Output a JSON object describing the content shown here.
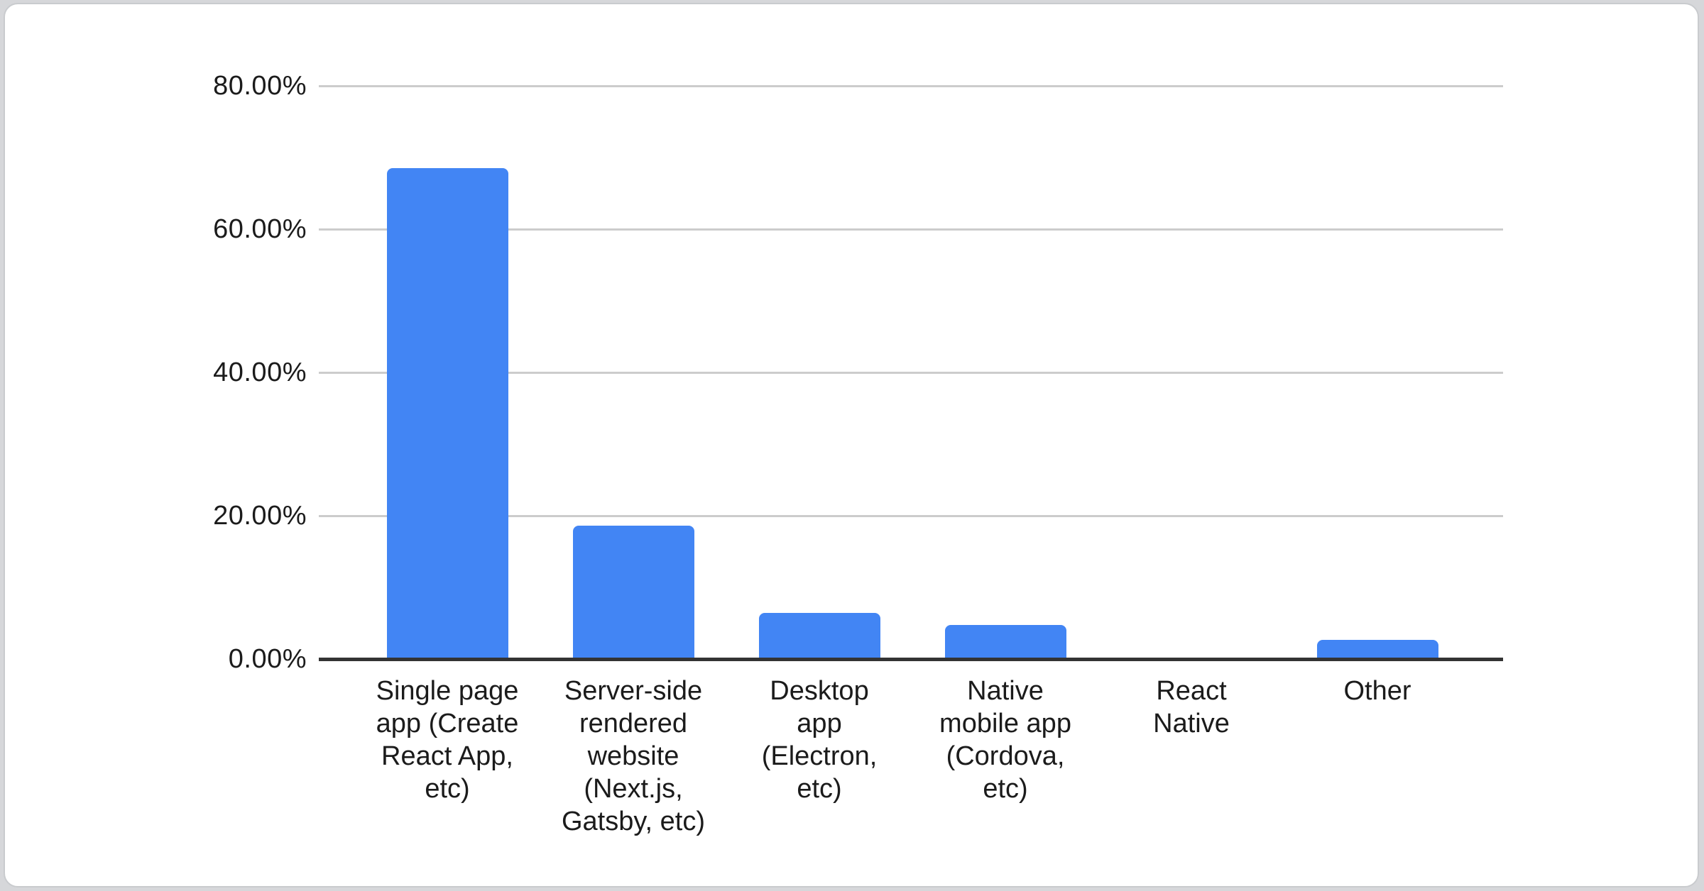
{
  "page": {
    "background_color": "#d6d7da",
    "card_background": "#ffffff",
    "card_border_color": "#c9cbce"
  },
  "chart_data": {
    "type": "bar",
    "title": "",
    "categories": [
      "Single page app (Create React App, etc)",
      "Server-side rendered website (Next.js, Gatsby, etc)",
      "Desktop app (Electron, etc)",
      "Native mobile app (Cordova, etc)",
      "React Native",
      "Other"
    ],
    "category_lines": [
      [
        "Single page",
        "app (Create",
        "React App,",
        "etc)"
      ],
      [
        "Server-side",
        "rendered",
        "website",
        "(Next.js,",
        "Gatsby, etc)"
      ],
      [
        "Desktop",
        "app",
        "(Electron,",
        "etc)"
      ],
      [
        "Native",
        "mobile app",
        "(Cordova,",
        "etc)"
      ],
      [
        "React",
        "Native"
      ],
      [
        "Other"
      ]
    ],
    "values": [
      68.3,
      18.4,
      6.2,
      4.6,
      0,
      2.5
    ],
    "value_unit": "%",
    "xlabel": "",
    "ylabel": "",
    "ylim": [
      0,
      80
    ],
    "y_ticks": [
      {
        "label": "80.00%",
        "value": 80
      },
      {
        "label": "60.00%",
        "value": 60
      },
      {
        "label": "40.00%",
        "value": 40
      },
      {
        "label": "20.00%",
        "value": 20
      },
      {
        "label": "0.00%",
        "value": 0
      }
    ],
    "grid": true,
    "legend": "none",
    "bar_color": "#4285f4",
    "gridline_color": "#cccccc",
    "axis_line_color": "#333333",
    "text_color": "#1b1b1b"
  }
}
